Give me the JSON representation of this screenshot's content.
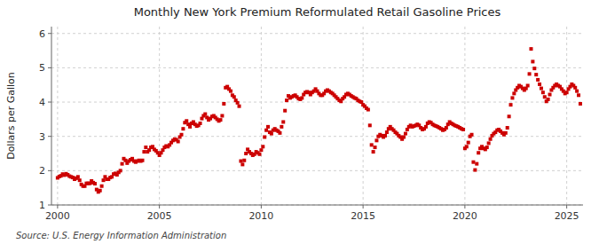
{
  "chart_data": {
    "type": "scatter",
    "title": "Monthly New York Premium Reformulated Retail Gasoline Prices",
    "ylabel": "Dollars per Gallon",
    "source": "Source: U.S. Energy Information Administration",
    "xlim": [
      1999.7,
      2025.8
    ],
    "ylim": [
      1,
      6.2
    ],
    "xticks": [
      2000,
      2005,
      2010,
      2015,
      2020,
      2025
    ],
    "yticks": [
      1,
      2,
      3,
      4,
      5,
      6
    ],
    "grid": true,
    "color": "#cc0000",
    "marker": "square",
    "x": [
      2000,
      2000.083333,
      2000.166667,
      2000.25,
      2000.333333,
      2000.416667,
      2000.5,
      2000.583333,
      2000.666667,
      2000.75,
      2000.833333,
      2000.916667,
      2001,
      2001.083333,
      2001.166667,
      2001.25,
      2001.333333,
      2001.416667,
      2001.5,
      2001.583333,
      2001.666667,
      2001.75,
      2001.833333,
      2001.916667,
      2002,
      2002.083333,
      2002.166667,
      2002.25,
      2002.333333,
      2002.416667,
      2002.5,
      2002.583333,
      2002.666667,
      2002.75,
      2002.833333,
      2002.916667,
      2003,
      2003.083333,
      2003.166667,
      2003.25,
      2003.333333,
      2003.416667,
      2003.5,
      2003.583333,
      2003.666667,
      2003.75,
      2003.833333,
      2003.916667,
      2004,
      2004.083333,
      2004.166667,
      2004.25,
      2004.333333,
      2004.416667,
      2004.5,
      2004.583333,
      2004.666667,
      2004.75,
      2004.833333,
      2004.916667,
      2005,
      2005.083333,
      2005.166667,
      2005.25,
      2005.333333,
      2005.416667,
      2005.5,
      2005.583333,
      2005.666667,
      2005.75,
      2005.833333,
      2005.916667,
      2006,
      2006.083333,
      2006.166667,
      2006.25,
      2006.333333,
      2006.416667,
      2006.5,
      2006.583333,
      2006.666667,
      2006.75,
      2006.833333,
      2006.916667,
      2007,
      2007.083333,
      2007.166667,
      2007.25,
      2007.333333,
      2007.416667,
      2007.5,
      2007.583333,
      2007.666667,
      2007.75,
      2007.833333,
      2007.916667,
      2008,
      2008.083333,
      2008.166667,
      2008.25,
      2008.333333,
      2008.416667,
      2008.5,
      2008.583333,
      2008.666667,
      2008.75,
      2008.833333,
      2008.916667,
      2009,
      2009.083333,
      2009.166667,
      2009.25,
      2009.333333,
      2009.416667,
      2009.5,
      2009.583333,
      2009.666667,
      2009.75,
      2009.833333,
      2009.916667,
      2010,
      2010.083333,
      2010.166667,
      2010.25,
      2010.333333,
      2010.416667,
      2010.5,
      2010.583333,
      2010.666667,
      2010.75,
      2010.833333,
      2010.916667,
      2011,
      2011.083333,
      2011.166667,
      2011.25,
      2011.333333,
      2011.416667,
      2011.5,
      2011.583333,
      2011.666667,
      2011.75,
      2011.833333,
      2011.916667,
      2012,
      2012.083333,
      2012.166667,
      2012.25,
      2012.333333,
      2012.416667,
      2012.5,
      2012.583333,
      2012.666667,
      2012.75,
      2012.833333,
      2012.916667,
      2013,
      2013.083333,
      2013.166667,
      2013.25,
      2013.333333,
      2013.416667,
      2013.5,
      2013.583333,
      2013.666667,
      2013.75,
      2013.833333,
      2013.916667,
      2014,
      2014.083333,
      2014.166667,
      2014.25,
      2014.333333,
      2014.416667,
      2014.5,
      2014.583333,
      2014.666667,
      2014.75,
      2014.833333,
      2014.916667,
      2015,
      2015.083333,
      2015.166667,
      2015.25,
      2015.333333,
      2015.416667,
      2015.5,
      2015.583333,
      2015.666667,
      2015.75,
      2015.833333,
      2015.916667,
      2016,
      2016.083333,
      2016.166667,
      2016.25,
      2016.333333,
      2016.416667,
      2016.5,
      2016.583333,
      2016.666667,
      2016.75,
      2016.833333,
      2016.916667,
      2017,
      2017.083333,
      2017.166667,
      2017.25,
      2017.333333,
      2017.416667,
      2017.5,
      2017.583333,
      2017.666667,
      2017.75,
      2017.833333,
      2017.916667,
      2018,
      2018.083333,
      2018.166667,
      2018.25,
      2018.333333,
      2018.416667,
      2018.5,
      2018.583333,
      2018.666667,
      2018.75,
      2018.833333,
      2018.916667,
      2019,
      2019.083333,
      2019.166667,
      2019.25,
      2019.333333,
      2019.416667,
      2019.5,
      2019.583333,
      2019.666667,
      2019.75,
      2019.833333,
      2019.916667,
      2020,
      2020.083333,
      2020.166667,
      2020.25,
      2020.333333,
      2020.416667,
      2020.5,
      2020.583333,
      2020.666667,
      2020.75,
      2020.833333,
      2020.916667,
      2021,
      2021.083333,
      2021.166667,
      2021.25,
      2021.333333,
      2021.416667,
      2021.5,
      2021.583333,
      2021.666667,
      2021.75,
      2021.833333,
      2021.916667,
      2022,
      2022.083333,
      2022.166667,
      2022.25,
      2022.333333,
      2022.416667,
      2022.5,
      2022.583333,
      2022.666667,
      2022.75,
      2022.833333,
      2022.916667,
      2023,
      2023.083333,
      2023.166667,
      2023.25,
      2023.333333,
      2023.416667,
      2023.5,
      2023.583333,
      2023.666667,
      2023.75,
      2023.833333,
      2023.916667,
      2024,
      2024.083333,
      2024.166667,
      2024.25,
      2024.333333,
      2024.416667,
      2024.5,
      2024.583333,
      2024.666667,
      2024.75,
      2024.833333,
      2024.916667,
      2025,
      2025.083333,
      2025.166667,
      2025.25,
      2025.333333,
      2025.416667,
      2025.5,
      2025.583333,
      2025.666667
    ],
    "values": [
      1.79,
      1.83,
      1.85,
      1.9,
      1.87,
      1.91,
      1.88,
      1.84,
      1.82,
      1.8,
      1.75,
      1.78,
      1.82,
      1.72,
      1.6,
      1.55,
      1.55,
      1.63,
      1.63,
      1.63,
      1.7,
      1.65,
      1.62,
      1.45,
      1.38,
      1.42,
      1.55,
      1.72,
      1.82,
      1.75,
      1.75,
      1.8,
      1.82,
      1.9,
      1.92,
      1.88,
      1.95,
      2.0,
      2.2,
      2.35,
      2.3,
      2.22,
      2.28,
      2.32,
      2.35,
      2.28,
      2.25,
      2.28,
      2.3,
      2.28,
      2.3,
      2.55,
      2.68,
      2.55,
      2.6,
      2.68,
      2.7,
      2.62,
      2.58,
      2.52,
      2.45,
      2.52,
      2.6,
      2.68,
      2.72,
      2.7,
      2.75,
      2.82,
      2.88,
      2.92,
      2.9,
      2.85,
      2.98,
      3.05,
      3.22,
      3.4,
      3.45,
      3.35,
      3.28,
      3.38,
      3.42,
      3.35,
      3.3,
      3.32,
      3.38,
      3.52,
      3.6,
      3.65,
      3.55,
      3.48,
      3.52,
      3.58,
      3.6,
      3.55,
      3.5,
      3.45,
      3.48,
      3.6,
      3.95,
      4.42,
      4.45,
      4.38,
      4.32,
      4.2,
      4.15,
      4.05,
      3.98,
      3.88,
      2.28,
      2.18,
      2.3,
      2.5,
      2.62,
      2.55,
      2.5,
      2.45,
      2.48,
      2.55,
      2.52,
      2.48,
      2.6,
      2.7,
      2.98,
      3.18,
      3.28,
      3.12,
      3.08,
      3.18,
      3.22,
      3.18,
      3.15,
      3.1,
      3.28,
      3.42,
      3.75,
      4.05,
      4.18,
      4.12,
      4.15,
      4.18,
      4.2,
      4.15,
      4.1,
      4.08,
      4.12,
      4.22,
      4.28,
      4.3,
      4.28,
      4.22,
      4.28,
      4.32,
      4.38,
      4.32,
      4.25,
      4.2,
      4.2,
      4.25,
      4.32,
      4.35,
      4.32,
      4.28,
      4.25,
      4.2,
      4.15,
      4.1,
      4.05,
      4.02,
      4.1,
      4.15,
      4.22,
      4.25,
      4.22,
      4.18,
      4.15,
      4.12,
      4.1,
      4.05,
      4.02,
      4.0,
      3.92,
      3.88,
      3.82,
      3.78,
      3.32,
      2.75,
      2.55,
      2.68,
      2.88,
      3.0,
      3.05,
      3.02,
      2.98,
      3.02,
      3.12,
      3.22,
      3.28,
      3.22,
      3.18,
      3.12,
      3.08,
      3.02,
      2.98,
      2.92,
      2.98,
      3.08,
      3.2,
      3.28,
      3.32,
      3.28,
      3.3,
      3.32,
      3.35,
      3.32,
      3.25,
      3.2,
      3.22,
      3.28,
      3.38,
      3.42,
      3.4,
      3.35,
      3.32,
      3.3,
      3.28,
      3.25,
      3.22,
      3.18,
      3.2,
      3.25,
      3.35,
      3.42,
      3.38,
      3.35,
      3.32,
      3.3,
      3.28,
      3.25,
      3.22,
      3.2,
      2.65,
      2.7,
      2.82,
      3.0,
      3.05,
      2.25,
      2.02,
      2.2,
      2.52,
      2.65,
      2.7,
      2.65,
      2.62,
      2.68,
      2.8,
      2.92,
      3.02,
      3.08,
      3.12,
      3.18,
      3.2,
      3.15,
      3.1,
      3.05,
      3.1,
      3.25,
      3.58,
      3.92,
      4.12,
      4.25,
      4.35,
      4.42,
      4.48,
      4.45,
      4.4,
      4.35,
      4.4,
      4.48,
      4.82,
      5.55,
      5.18,
      4.98,
      4.8,
      4.65,
      4.52,
      4.4,
      4.28,
      4.15,
      4.02,
      4.08,
      4.22,
      4.35,
      4.42,
      4.48,
      4.52,
      4.48,
      4.45,
      4.38,
      4.32,
      4.25,
      4.28,
      4.38,
      4.45,
      4.52,
      4.48,
      4.42,
      4.32,
      4.2,
      3.95
    ]
  }
}
